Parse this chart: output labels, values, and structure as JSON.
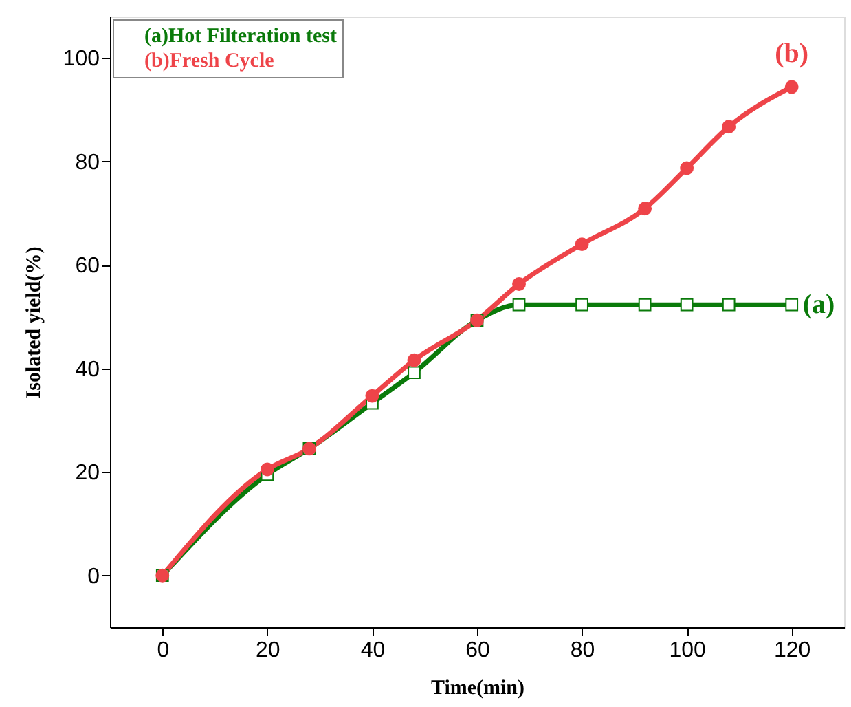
{
  "chart_data": {
    "type": "line",
    "xlabel": "Time(min)",
    "ylabel": "Isolated yield(%)",
    "xlim": [
      -10,
      130
    ],
    "xticks": [
      0,
      20,
      40,
      60,
      80,
      100,
      120
    ],
    "ylim": [
      -10,
      108
    ],
    "yticks": [
      0,
      20,
      40,
      60,
      80,
      100
    ],
    "grid": false,
    "legend": "top left",
    "line_style": "solid",
    "series": [
      {
        "name": "(a)Hot Filteration test",
        "color": "#0a7a0a",
        "marker": "square",
        "x": [
          0,
          20,
          28,
          40,
          48,
          60,
          68,
          80,
          92,
          100,
          108,
          120
        ],
        "values": [
          0,
          19.5,
          24.5,
          33.3,
          39.2,
          49.3,
          52.3,
          52.3,
          52.3,
          52.3,
          52.3,
          52.3
        ]
      },
      {
        "name": "(b)Fresh Cycle",
        "color": "#ee4449",
        "marker": "circle",
        "x": [
          0,
          20,
          28,
          40,
          48,
          60,
          68,
          80,
          92,
          100,
          108,
          120
        ],
        "values": [
          0,
          20.5,
          24.5,
          34.7,
          41.6,
          49.3,
          56.3,
          64,
          70.9,
          78.7,
          86.7,
          94.4
        ]
      }
    ],
    "annotations": [
      {
        "text": "(a)",
        "x": 120,
        "y": 52.3
      },
      {
        "text": "(b)",
        "x": 120,
        "y": 94.4
      }
    ]
  }
}
